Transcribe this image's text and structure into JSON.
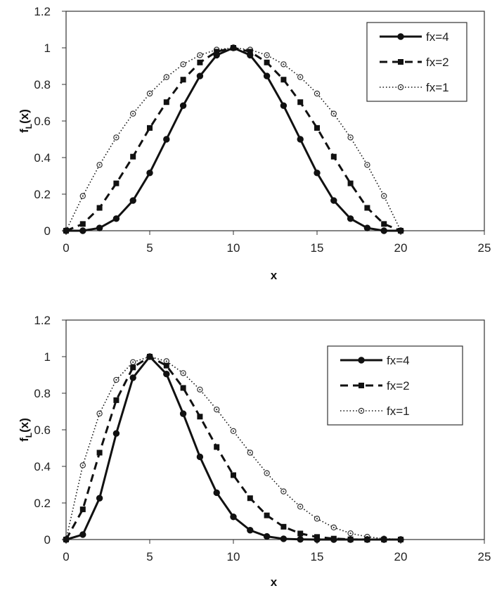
{
  "chart_data": [
    {
      "type": "line",
      "title": "",
      "xlabel": "x",
      "ylabel": "f",
      "ylabel_sub": "L",
      "ylabel_rest": "(x)",
      "xlim": [
        0,
        25
      ],
      "ylim": [
        0,
        1.2
      ],
      "xticks": [
        0,
        5,
        10,
        15,
        20,
        25
      ],
      "yticks": [
        0,
        0.2,
        0.4,
        0.6,
        0.8,
        1,
        1.2
      ],
      "xtick_labels": [
        "0",
        "5",
        "10",
        "15",
        "20",
        "25"
      ],
      "ytick_labels": [
        "0",
        "0.2",
        "0.4",
        "0.6",
        "0.8",
        "1",
        "1.2"
      ],
      "grid": false,
      "legend_position": "top-right",
      "x": [
        0,
        1,
        2,
        3,
        4,
        5,
        6,
        7,
        8,
        9,
        10,
        11,
        12,
        13,
        14,
        15,
        16,
        17,
        18,
        19,
        20
      ],
      "series": [
        {
          "name": "fx=4",
          "style": "solid",
          "marker": "circle",
          "values": [
            0,
            0,
            0.015,
            0.066,
            0.165,
            0.316,
            0.5,
            0.684,
            0.846,
            0.96,
            1,
            0.96,
            0.846,
            0.684,
            0.5,
            0.316,
            0.165,
            0.066,
            0.015,
            0,
            0
          ]
        },
        {
          "name": "fx=2",
          "style": "dashed",
          "marker": "square",
          "values": [
            0,
            0.037,
            0.125,
            0.259,
            0.405,
            0.562,
            0.703,
            0.826,
            0.92,
            0.979,
            1,
            0.979,
            0.92,
            0.826,
            0.703,
            0.562,
            0.405,
            0.259,
            0.125,
            0.037,
            0
          ]
        },
        {
          "name": "fx=1",
          "style": "dotted",
          "marker": "open-circle",
          "values": [
            0,
            0.19,
            0.36,
            0.51,
            0.64,
            0.75,
            0.84,
            0.91,
            0.96,
            0.99,
            1,
            0.99,
            0.96,
            0.91,
            0.84,
            0.75,
            0.64,
            0.51,
            0.36,
            0.19,
            0
          ]
        }
      ]
    },
    {
      "type": "line",
      "title": "",
      "xlabel": "x",
      "ylabel": "f",
      "ylabel_sub": "L",
      "ylabel_rest": "(x)",
      "xlim": [
        0,
        25
      ],
      "ylim": [
        0,
        1.2
      ],
      "xticks": [
        0,
        5,
        10,
        15,
        20,
        25
      ],
      "yticks": [
        0,
        0.2,
        0.4,
        0.6,
        0.8,
        1,
        1.2
      ],
      "xtick_labels": [
        "0",
        "5",
        "10",
        "15",
        "20",
        "25"
      ],
      "ytick_labels": [
        "0",
        "0.2",
        "0.4",
        "0.6",
        "0.8",
        "1",
        "1.2"
      ],
      "grid": false,
      "legend_position": "top-right",
      "x": [
        0,
        1,
        2,
        3,
        4,
        5,
        6,
        7,
        8,
        9,
        10,
        11,
        12,
        13,
        14,
        15,
        16,
        17,
        18,
        19,
        20
      ],
      "series": [
        {
          "name": "fx=4",
          "style": "solid",
          "marker": "circle",
          "values": [
            0,
            0.027,
            0.226,
            0.58,
            0.885,
            1,
            0.905,
            0.688,
            0.452,
            0.256,
            0.124,
            0.051,
            0.017,
            0.004,
            0.001,
            0,
            0,
            0,
            0,
            0,
            0
          ]
        },
        {
          "name": "fx=2",
          "style": "dashed",
          "marker": "square",
          "values": [
            0,
            0.165,
            0.475,
            0.762,
            0.941,
            1,
            0.951,
            0.829,
            0.672,
            0.506,
            0.352,
            0.226,
            0.132,
            0.07,
            0.033,
            0.014,
            0.005,
            0.001,
            0,
            0,
            0
          ]
        },
        {
          "name": "fx=1",
          "style": "dotted",
          "marker": "open-circle",
          "values": [
            0,
            0.406,
            0.689,
            0.873,
            0.97,
            1,
            0.975,
            0.91,
            0.82,
            0.711,
            0.593,
            0.475,
            0.363,
            0.263,
            0.18,
            0.114,
            0.066,
            0.034,
            0.015,
            0.005,
            0.001
          ]
        }
      ]
    }
  ]
}
